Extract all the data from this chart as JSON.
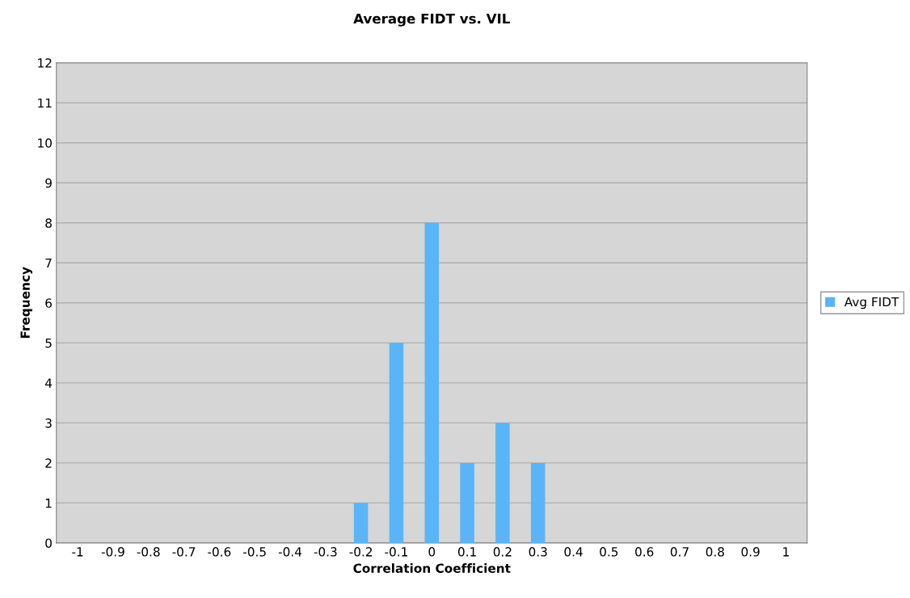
{
  "chart_data": {
    "type": "bar",
    "title": "Average FIDT vs. VIL",
    "xlabel": "Correlation Coefficient",
    "ylabel": "Frequency",
    "categories": [
      "-1",
      "-0.9",
      "-0.8",
      "-0.7",
      "-0.6",
      "-0.5",
      "-0.4",
      "-0.3",
      "-0.2",
      "-0.1",
      "0",
      "0.1",
      "0.2",
      "0.3",
      "0.4",
      "0.5",
      "0.6",
      "0.7",
      "0.8",
      "0.9",
      "1"
    ],
    "series": [
      {
        "name": "Avg FIDT",
        "color": "#5ab4f8",
        "values": [
          0,
          0,
          0,
          0,
          0,
          0,
          0,
          0,
          1,
          5,
          8,
          2,
          3,
          2,
          0,
          0,
          0,
          0,
          0,
          0,
          0
        ]
      }
    ],
    "ylim": [
      0,
      12
    ],
    "yticks": [
      0,
      1,
      2,
      3,
      4,
      5,
      6,
      7,
      8,
      9,
      10,
      11,
      12
    ],
    "grid": "y",
    "legend": "right"
  }
}
